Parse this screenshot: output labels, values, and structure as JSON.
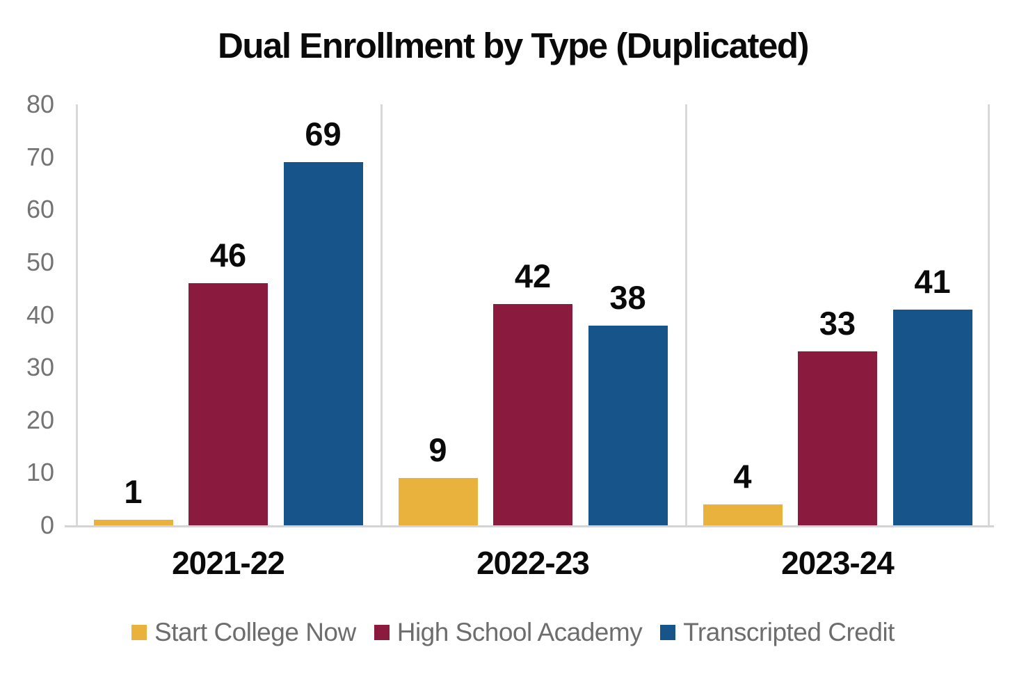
{
  "chart_data": {
    "type": "bar",
    "title": "Dual Enrollment by Type (Duplicated)",
    "categories": [
      "2021-22",
      "2022-23",
      "2023-24"
    ],
    "series": [
      {
        "name": "Start College Now",
        "color": "#E9B23C",
        "values": [
          1,
          9,
          4
        ]
      },
      {
        "name": "High School Academy",
        "color": "#8A1A3E",
        "values": [
          46,
          42,
          33
        ]
      },
      {
        "name": "Transcripted Credit",
        "color": "#17548A",
        "values": [
          69,
          38,
          41
        ]
      }
    ],
    "ylim": [
      0,
      80
    ],
    "yticks": [
      "0",
      "10",
      "20",
      "30",
      "40",
      "50",
      "60",
      "70",
      "80"
    ],
    "data_labels": true,
    "grid": "vertical category separators only",
    "legend_position": "bottom"
  },
  "colors": {
    "background": "#FFFFFF",
    "axis_line": "#D9D9D9",
    "tick_label_text": "#737373",
    "legend_text": "#6D6D6D",
    "title_text": "#0A0A0A",
    "data_label_text": "#0A0A0A"
  }
}
